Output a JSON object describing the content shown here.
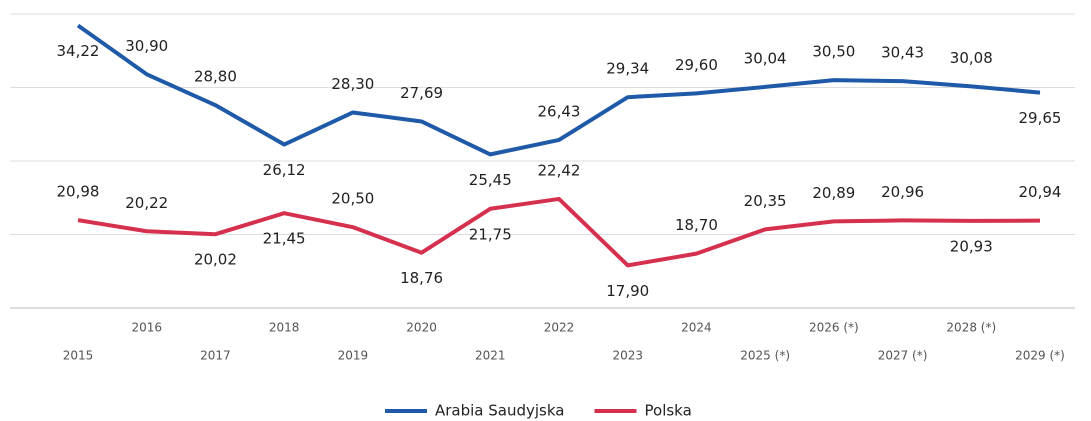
{
  "chart_data": {
    "type": "line",
    "categories": [
      "2015",
      "2016",
      "2017",
      "2018",
      "2019",
      "2020",
      "2021",
      "2022",
      "2023",
      "2024",
      "2025 (*)",
      "2026 (*)",
      "2027 (*)",
      "2028 (*)",
      "2029 (*)"
    ],
    "series": [
      {
        "name": "Arabia Saudyjska",
        "color": "#1f5aa8",
        "values": [
          34.22,
          30.9,
          28.8,
          26.12,
          28.3,
          27.69,
          25.45,
          26.43,
          29.34,
          29.6,
          30.04,
          30.5,
          30.43,
          30.08,
          29.65
        ],
        "value_labels": [
          "34,22",
          "30,90",
          "28,80",
          "26,12",
          "28,30",
          "27,69",
          "25,45",
          "26,43",
          "29,34",
          "29,60",
          "30,04",
          "30,50",
          "30,43",
          "30,08",
          "29,65"
        ]
      },
      {
        "name": "Polska",
        "color": "#d6304f",
        "values": [
          20.98,
          20.22,
          20.02,
          21.45,
          20.5,
          18.76,
          21.75,
          22.42,
          17.9,
          18.7,
          20.35,
          20.89,
          20.96,
          20.93,
          20.94
        ],
        "value_labels": [
          "20,98",
          "20,22",
          "20,02",
          "21,45",
          "20,50",
          "18,76",
          "21,75",
          "22,42",
          "17,90",
          "18,70",
          "20,35",
          "20,89",
          "20,96",
          "20,93",
          "20,94"
        ]
      }
    ],
    "ylim": [
      15,
      35
    ],
    "yticks": [
      15,
      20,
      25,
      30,
      35
    ],
    "grid": true
  }
}
